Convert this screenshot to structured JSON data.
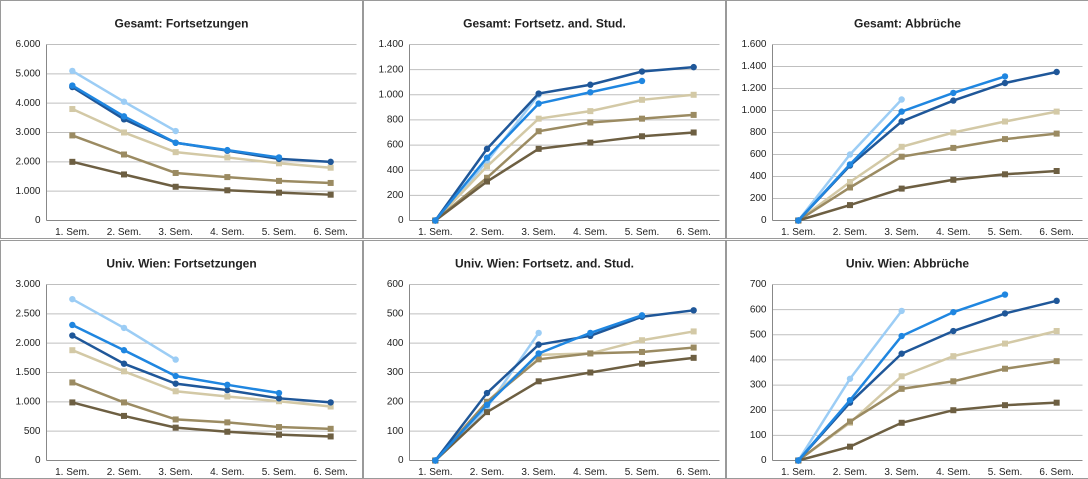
{
  "chart_data": [
    {
      "type": "line",
      "title": "Gesamt: Fortsetzungen",
      "categories": [
        "1. Sem.",
        "2. Sem.",
        "3. Sem.",
        "4. Sem.",
        "5. Sem.",
        "6. Sem."
      ],
      "ylim": [
        0,
        6000
      ],
      "yticks": [
        0,
        {
          "value": 1000,
          "label": "1.000"
        },
        {
          "value": 2000,
          "label": "2.000"
        },
        {
          "value": 3000,
          "label": "3.000"
        },
        {
          "value": 4000,
          "label": "4.000"
        },
        {
          "value": 5000,
          "label": "5.000"
        },
        {
          "value": 6000,
          "label": "6.000"
        }
      ],
      "grid": true,
      "series": [
        {
          "color": "#9ccdf5",
          "marker": "circle",
          "values": [
            5100,
            4050,
            3050,
            null,
            null,
            null
          ]
        },
        {
          "color": "#d3c9a6",
          "marker": "square",
          "values": [
            3800,
            3000,
            2330,
            2150,
            1950,
            1800
          ]
        },
        {
          "color": "#9b8b62",
          "marker": "square",
          "values": [
            2900,
            2250,
            1620,
            1480,
            1350,
            1280
          ]
        },
        {
          "color": "#6d5f42",
          "marker": "square",
          "values": [
            2000,
            1570,
            1150,
            1030,
            950,
            880
          ]
        },
        {
          "color": "#1f5799",
          "marker": "circle",
          "values": [
            4550,
            3450,
            2650,
            2380,
            2100,
            2000
          ]
        },
        {
          "color": "#1f86e0",
          "marker": "circle",
          "values": [
            4600,
            3550,
            2650,
            2400,
            2150,
            null
          ]
        }
      ]
    },
    {
      "type": "line",
      "title": "Gesamt: Fortsetz. and. Stud.",
      "categories": [
        "1. Sem.",
        "2. Sem.",
        "3. Sem.",
        "4. Sem.",
        "5. Sem.",
        "6. Sem."
      ],
      "ylim": [
        0,
        1400
      ],
      "yticks": [
        0,
        200,
        400,
        600,
        800,
        {
          "value": 1000,
          "label": "1.000"
        },
        {
          "value": 1200,
          "label": "1.200"
        },
        {
          "value": 1400,
          "label": "1.400"
        }
      ],
      "grid": true,
      "series": [
        {
          "color": "#9ccdf5",
          "marker": "circle",
          "values": [
            0,
            470,
            1000,
            null,
            null,
            null
          ]
        },
        {
          "color": "#d3c9a6",
          "marker": "square",
          "values": [
            0,
            430,
            810,
            870,
            960,
            1000
          ]
        },
        {
          "color": "#9b8b62",
          "marker": "square",
          "values": [
            0,
            340,
            710,
            780,
            810,
            840
          ]
        },
        {
          "color": "#6d5f42",
          "marker": "square",
          "values": [
            0,
            310,
            570,
            620,
            670,
            700
          ]
        },
        {
          "color": "#1f5799",
          "marker": "circle",
          "values": [
            0,
            570,
            1010,
            1080,
            1185,
            1220
          ]
        },
        {
          "color": "#1f86e0",
          "marker": "circle",
          "values": [
            0,
            500,
            930,
            1020,
            1110,
            null
          ]
        }
      ]
    },
    {
      "type": "line",
      "title": "Gesamt: Abbrüche",
      "categories": [
        "1. Sem.",
        "2. Sem.",
        "3. Sem.",
        "4. Sem.",
        "5. Sem.",
        "6. Sem."
      ],
      "ylim": [
        0,
        1600
      ],
      "yticks": [
        0,
        200,
        400,
        600,
        800,
        {
          "value": 1000,
          "label": "1.000"
        },
        {
          "value": 1200,
          "label": "1.200"
        },
        {
          "value": 1400,
          "label": "1.400"
        },
        {
          "value": 1600,
          "label": "1.600"
        }
      ],
      "grid": true,
      "series": [
        {
          "color": "#9ccdf5",
          "marker": "circle",
          "values": [
            0,
            600,
            1100,
            null,
            null,
            null
          ]
        },
        {
          "color": "#d3c9a6",
          "marker": "square",
          "values": [
            0,
            350,
            670,
            800,
            900,
            990
          ]
        },
        {
          "color": "#9b8b62",
          "marker": "square",
          "values": [
            0,
            300,
            580,
            660,
            740,
            790
          ]
        },
        {
          "color": "#6d5f42",
          "marker": "square",
          "values": [
            0,
            140,
            290,
            370,
            420,
            450
          ]
        },
        {
          "color": "#1f5799",
          "marker": "circle",
          "values": [
            0,
            500,
            900,
            1090,
            1250,
            1350
          ]
        },
        {
          "color": "#1f86e0",
          "marker": "circle",
          "values": [
            0,
            510,
            990,
            1160,
            1310,
            null
          ]
        }
      ]
    },
    {
      "type": "line",
      "title": "Univ. Wien: Fortsetzungen",
      "categories": [
        "1. Sem.",
        "2. Sem.",
        "3. Sem.",
        "4. Sem.",
        "5. Sem.",
        "6. Sem."
      ],
      "ylim": [
        0,
        3000
      ],
      "yticks": [
        0,
        500,
        {
          "value": 1000,
          "label": "1.000"
        },
        {
          "value": 1500,
          "label": "1.500"
        },
        {
          "value": 2000,
          "label": "2.000"
        },
        {
          "value": 2500,
          "label": "2.500"
        },
        {
          "value": 3000,
          "label": "3.000"
        }
      ],
      "grid": true,
      "series": [
        {
          "color": "#9ccdf5",
          "marker": "circle",
          "values": [
            2750,
            2260,
            1720,
            null,
            null,
            null
          ]
        },
        {
          "color": "#d3c9a6",
          "marker": "square",
          "values": [
            1880,
            1520,
            1180,
            1090,
            1010,
            920
          ]
        },
        {
          "color": "#9b8b62",
          "marker": "square",
          "values": [
            1330,
            990,
            700,
            650,
            570,
            540
          ]
        },
        {
          "color": "#6d5f42",
          "marker": "square",
          "values": [
            990,
            760,
            560,
            490,
            440,
            410
          ]
        },
        {
          "color": "#1f5799",
          "marker": "circle",
          "values": [
            2130,
            1650,
            1310,
            1200,
            1060,
            990
          ]
        },
        {
          "color": "#1f86e0",
          "marker": "circle",
          "values": [
            2310,
            1880,
            1440,
            1290,
            1150,
            null
          ]
        }
      ]
    },
    {
      "type": "line",
      "title": "Univ. Wien: Fortsetz. and. Stud.",
      "categories": [
        "1. Sem.",
        "2. Sem.",
        "3. Sem.",
        "4. Sem.",
        "5. Sem.",
        "6. Sem."
      ],
      "ylim": [
        0,
        600
      ],
      "yticks": [
        0,
        100,
        200,
        300,
        400,
        500,
        600
      ],
      "grid": true,
      "series": [
        {
          "color": "#9ccdf5",
          "marker": "circle",
          "values": [
            0,
            180,
            435,
            null,
            null,
            null
          ]
        },
        {
          "color": "#d3c9a6",
          "marker": "square",
          "values": [
            0,
            200,
            360,
            365,
            410,
            440
          ]
        },
        {
          "color": "#9b8b62",
          "marker": "square",
          "values": [
            0,
            200,
            345,
            365,
            370,
            385
          ]
        },
        {
          "color": "#6d5f42",
          "marker": "square",
          "values": [
            0,
            165,
            270,
            300,
            330,
            350
          ]
        },
        {
          "color": "#1f5799",
          "marker": "circle",
          "values": [
            0,
            230,
            395,
            425,
            490,
            512
          ]
        },
        {
          "color": "#1f86e0",
          "marker": "circle",
          "values": [
            0,
            190,
            365,
            435,
            495,
            null
          ]
        }
      ]
    },
    {
      "type": "line",
      "title": "Univ. Wien: Abbrüche",
      "categories": [
        "1. Sem.",
        "2. Sem.",
        "3. Sem.",
        "4. Sem.",
        "5. Sem.",
        "6. Sem."
      ],
      "ylim": [
        0,
        700
      ],
      "yticks": [
        0,
        100,
        200,
        300,
        400,
        500,
        600,
        700
      ],
      "grid": true,
      "series": [
        {
          "color": "#9ccdf5",
          "marker": "circle",
          "values": [
            0,
            325,
            595,
            null,
            null,
            null
          ]
        },
        {
          "color": "#d3c9a6",
          "marker": "square",
          "values": [
            0,
            150,
            335,
            415,
            465,
            515
          ]
        },
        {
          "color": "#9b8b62",
          "marker": "square",
          "values": [
            0,
            155,
            285,
            315,
            365,
            395
          ]
        },
        {
          "color": "#6d5f42",
          "marker": "square",
          "values": [
            0,
            55,
            150,
            200,
            220,
            230
          ]
        },
        {
          "color": "#1f5799",
          "marker": "circle",
          "values": [
            0,
            230,
            425,
            515,
            585,
            635
          ]
        },
        {
          "color": "#1f86e0",
          "marker": "circle",
          "values": [
            0,
            240,
            495,
            590,
            660,
            null
          ]
        }
      ]
    }
  ]
}
